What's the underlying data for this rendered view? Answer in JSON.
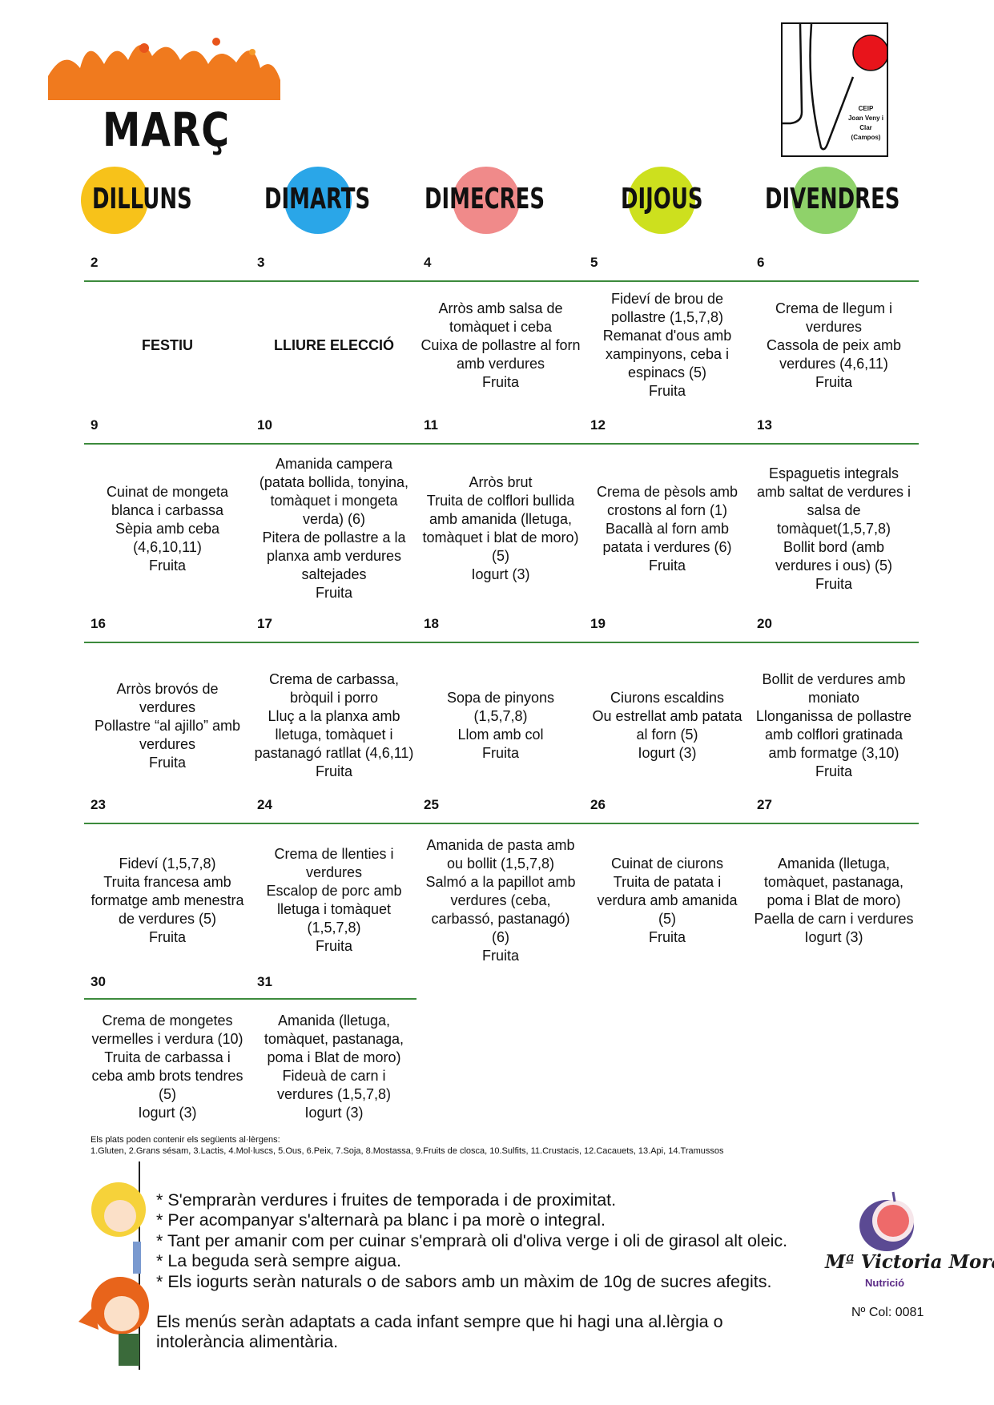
{
  "header": {
    "month": "MARÇ",
    "school_logo": {
      "text_lines": [
        "CEIP",
        "Joan Veny i",
        "Clar",
        "(Campos)"
      ],
      "dot_color": "#e8141b"
    },
    "days": [
      {
        "label": "DILLUNS",
        "color": "#f7c21a"
      },
      {
        "label": "DIMARTS",
        "color": "#2aa6e8"
      },
      {
        "label": "DIMECRES",
        "color": "#f08a8a"
      },
      {
        "label": "DIJOUS",
        "color": "#cde01e"
      },
      {
        "label": "DIVENDRES",
        "color": "#8fd26a"
      }
    ],
    "title_splash_color": "#f07a1e"
  },
  "weeks": [
    {
      "dates": [
        "2",
        "3",
        "4",
        "5",
        "6"
      ],
      "menus": [
        "FESTIU",
        "LLIURE ELECCIÓ",
        "Arròs amb salsa de tomàquet i ceba\nCuixa de pollastre al forn amb verdures\nFruita",
        "Fideví de brou de pollastre (1,5,7,8)\nRemanat d'ous amb xampinyons, ceba i espinacs (5)\nFruita",
        "Crema de llegum i verdures\nCassola de peix amb verdures (4,6,11)\nFruita"
      ]
    },
    {
      "dates": [
        "9",
        "10",
        "11",
        "12",
        "13"
      ],
      "menus": [
        "Cuinat de mongeta blanca i carbassa\nSèpia amb ceba (4,6,10,11)\nFruita",
        "Amanida campera (patata bollida, tonyina, tomàquet i mongeta verda) (6)\nPitera de pollastre a la planxa amb verdures saltejades\nFruita",
        "Arròs brut\nTruita de colflori bullida amb amanida (lletuga, tomàquet i blat de moro) (5)\nIogurt (3)",
        "Crema de pèsols amb crostons al forn (1)\nBacallà al forn amb patata i verdures (6)\nFruita",
        "Espaguetis integrals amb saltat de verdures i salsa de tomàquet(1,5,7,8)\nBollit bord (amb verdures i ous) (5)\nFruita"
      ]
    },
    {
      "dates": [
        "16",
        "17",
        "18",
        "19",
        "20"
      ],
      "menus": [
        "Arròs brovós de verdures\nPollastre “al ajillo” amb verdures\nFruita",
        "Crema de carbassa, bròquil i porro\nLluç a la planxa amb lletuga, tomàquet i pastanagó ratllat (4,6,11)\nFruita",
        "Sopa de pinyons (1,5,7,8)\nLlom amb col\nFruita",
        "Ciurons escaldins\nOu estrellat amb patata al forn  (5)\nIogurt (3)",
        "Bollit de verdures amb moniato\nLlonganissa de pollastre amb colflori gratinada amb formatge (3,10)\nFruita"
      ]
    },
    {
      "dates": [
        "23",
        "24",
        "25",
        "26",
        "27"
      ],
      "menus": [
        "Fideví (1,5,7,8)\nTruita francesa amb formatge amb menestra de verdures (5)\nFruita",
        "Crema de llenties i verdures\nEscalop de porc amb lletuga i tomàquet (1,5,7,8)\nFruita",
        "Amanida de pasta amb ou bollit (1,5,7,8)\nSalmó a la papillot amb verdures (ceba, carbassó, pastanagó) (6)\nFruita",
        "Cuinat de ciurons\nTruita de patata i verdura amb amanida (5)\nFruita",
        "Amanida (lletuga, tomàquet, pastanaga, poma i Blat de moro)\nPaella de carn i verdures\nIogurt (3)"
      ]
    },
    {
      "dates": [
        "30",
        "31"
      ],
      "menus": [
        "Crema de mongetes vermelles i verdura (10)\nTruita de carbassa i ceba amb brots tendres (5)\nIogurt (3)",
        "Amanida (lletuga, tomàquet, pastanaga, poma i Blat de moro)\nFideuà de carn i verdures (1,5,7,8)\nIogurt (3)"
      ]
    }
  ],
  "allergens": {
    "intro": "Els plats poden contenir els següents al·lèrgens:",
    "list": "1.Gluten, 2.Grans sésam, 3.Lactis, 4.Mol·luscs, 5.Ous, 6.Peix, 7.Soja, 8.Mostassa, 9.Fruits de closca, 10.Sulfits, 11.Crustacis, 12.Cacauets, 13.Api, 14.Tramussos"
  },
  "notes": [
    "* S'empraràn verdures i fruites de temporada i de proximitat.",
    "* Per acompanyar s'alternarà pa blanc i pa morè o integral.",
    "* Tant per amanir com per cuinar s'emprarà oli d'oliva verge i oli de girasol alt oleic.",
    "*  La beguda serà sempre aigua.",
    "*  Els iogurts seràn naturals o de sabors amb un màxim de 10g de sucres afegits."
  ],
  "adaptation_note": "Els menús seràn adaptats a cada infant sempre que hi hagi una al.lèrgia o intolerància alimentària.",
  "nutritionist": {
    "name": "Mª Victoria Mora",
    "subtitle": "Nutrició",
    "collegiate": "Nº Col: 0081"
  },
  "accent_line_color": "#3c8a3c"
}
